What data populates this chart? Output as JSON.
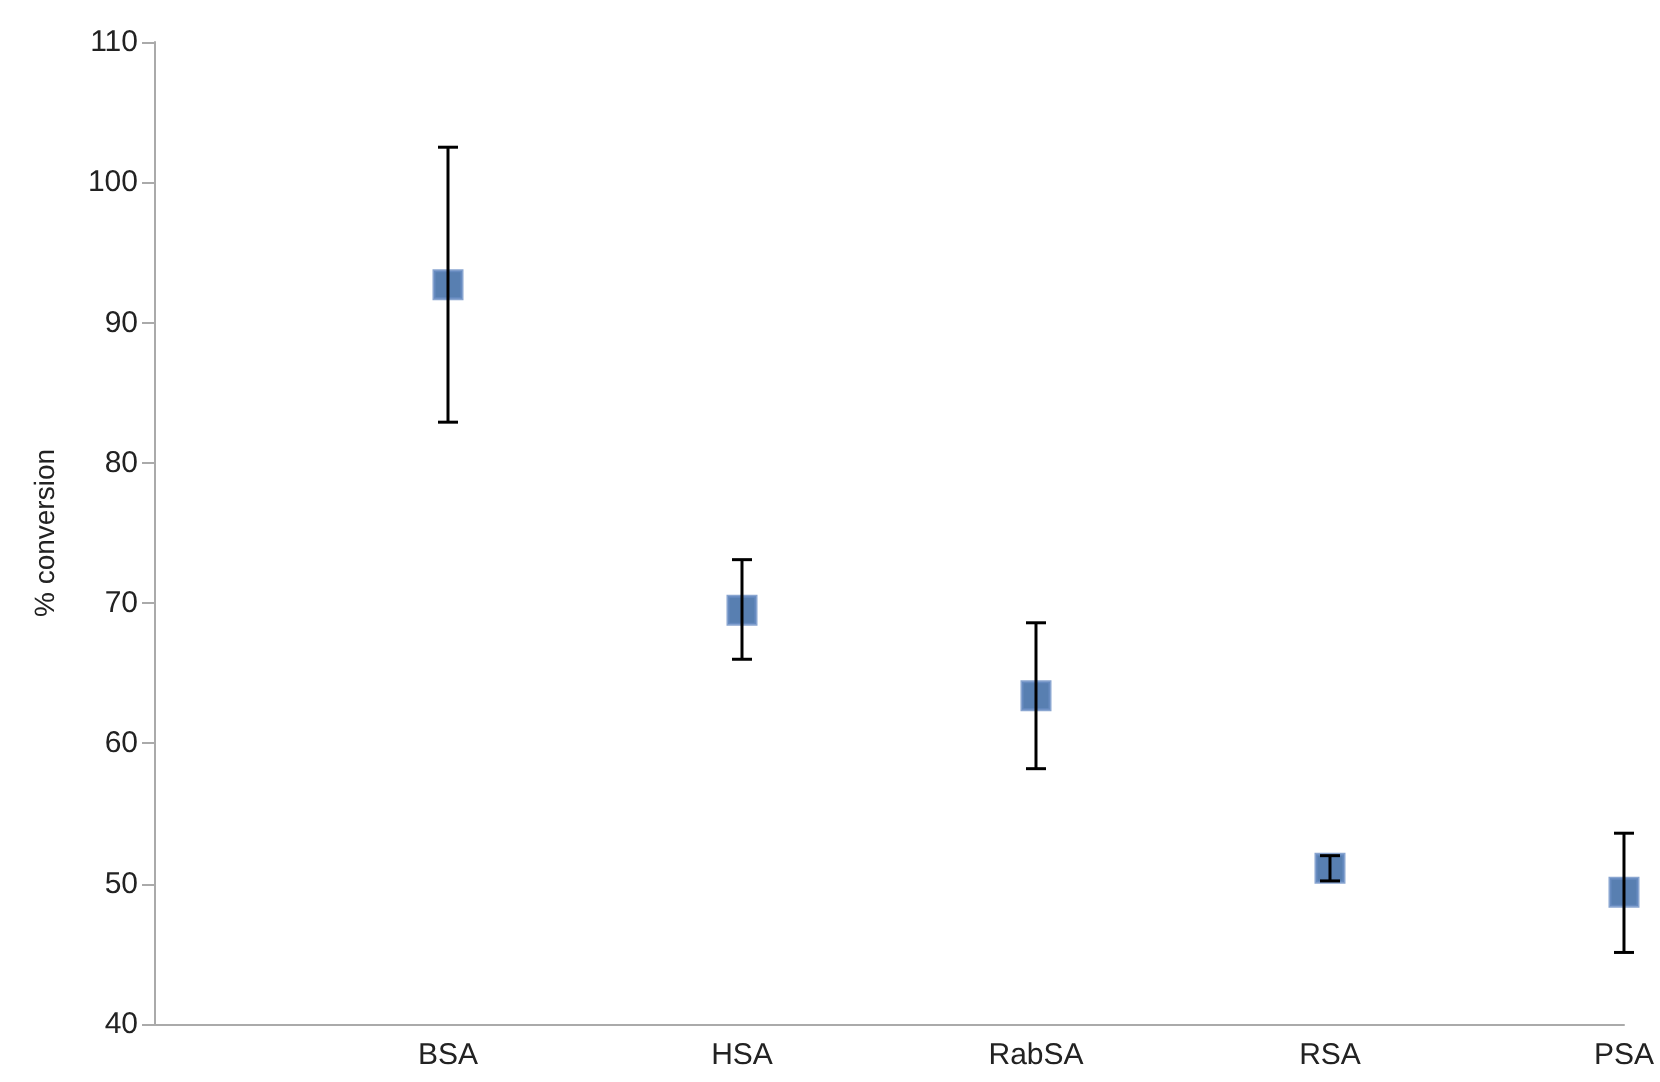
{
  "chart_data": {
    "type": "scatter",
    "ylabel": "% conversion",
    "categories": [
      null,
      "BSA",
      "HSA",
      "RabSA",
      "RSA",
      "PSA"
    ],
    "values": [
      null,
      92.7,
      69.5,
      63.4,
      51.1,
      49.4
    ],
    "errors": [
      null,
      [
        82.9,
        102.5
      ],
      [
        66.0,
        73.1
      ],
      [
        58.2,
        68.6
      ],
      [
        50.2,
        52.0
      ],
      [
        45.1,
        53.6
      ]
    ],
    "color": "#2e5f9e",
    "marker": "square",
    "ylim": [
      40,
      110
    ],
    "yticks": [
      40,
      50,
      60,
      70,
      80,
      90,
      100,
      110
    ],
    "grid": false
  }
}
